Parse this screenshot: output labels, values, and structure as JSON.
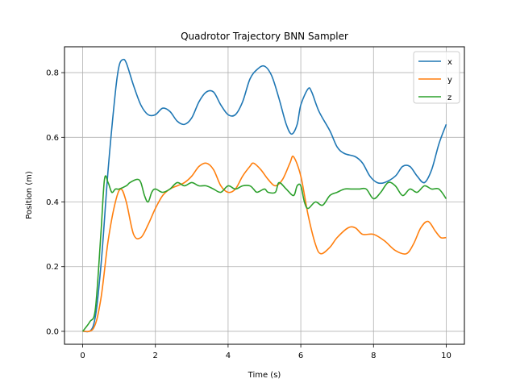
{
  "chart_data": {
    "type": "line",
    "title": "Quadrotor Trajectory BNN Sampler",
    "xlabel": "Time (s)",
    "ylabel": "Position (m)",
    "xlim": [
      -0.5,
      10.5
    ],
    "ylim": [
      -0.04,
      0.88
    ],
    "xticks": [
      0,
      2,
      4,
      6,
      8,
      10
    ],
    "yticks": [
      0.0,
      0.2,
      0.4,
      0.6,
      0.8
    ],
    "xtick_labels": [
      "0",
      "2",
      "4",
      "6",
      "8",
      "10"
    ],
    "ytick_labels": [
      "0.0",
      "0.2",
      "0.4",
      "0.6",
      "0.8"
    ],
    "grid": true,
    "legend_position": "top-right",
    "series": [
      {
        "name": "x",
        "color": "#1f77b4",
        "points": [
          [
            0,
            0
          ],
          [
            0.3,
            0.02
          ],
          [
            0.5,
            0.2
          ],
          [
            0.7,
            0.5
          ],
          [
            0.9,
            0.74
          ],
          [
            1.0,
            0.82
          ],
          [
            1.1,
            0.84
          ],
          [
            1.2,
            0.83
          ],
          [
            1.4,
            0.76
          ],
          [
            1.6,
            0.7
          ],
          [
            1.8,
            0.67
          ],
          [
            2.0,
            0.67
          ],
          [
            2.2,
            0.69
          ],
          [
            2.4,
            0.68
          ],
          [
            2.6,
            0.65
          ],
          [
            2.8,
            0.64
          ],
          [
            3.0,
            0.66
          ],
          [
            3.2,
            0.71
          ],
          [
            3.4,
            0.74
          ],
          [
            3.6,
            0.74
          ],
          [
            3.8,
            0.7
          ],
          [
            4.0,
            0.67
          ],
          [
            4.2,
            0.67
          ],
          [
            4.4,
            0.71
          ],
          [
            4.6,
            0.78
          ],
          [
            4.8,
            0.81
          ],
          [
            5.0,
            0.82
          ],
          [
            5.2,
            0.79
          ],
          [
            5.4,
            0.72
          ],
          [
            5.6,
            0.64
          ],
          [
            5.75,
            0.61
          ],
          [
            5.9,
            0.64
          ],
          [
            6.0,
            0.7
          ],
          [
            6.2,
            0.75
          ],
          [
            6.3,
            0.74
          ],
          [
            6.5,
            0.68
          ],
          [
            6.8,
            0.62
          ],
          [
            7.0,
            0.57
          ],
          [
            7.2,
            0.55
          ],
          [
            7.5,
            0.54
          ],
          [
            7.7,
            0.52
          ],
          [
            7.9,
            0.48
          ],
          [
            8.1,
            0.46
          ],
          [
            8.3,
            0.46
          ],
          [
            8.6,
            0.48
          ],
          [
            8.8,
            0.51
          ],
          [
            9.0,
            0.51
          ],
          [
            9.2,
            0.48
          ],
          [
            9.4,
            0.46
          ],
          [
            9.6,
            0.5
          ],
          [
            9.8,
            0.58
          ],
          [
            10.0,
            0.64
          ]
        ]
      },
      {
        "name": "y",
        "color": "#ff7f0e",
        "points": [
          [
            0,
            0
          ],
          [
            0.3,
            0.01
          ],
          [
            0.5,
            0.1
          ],
          [
            0.7,
            0.28
          ],
          [
            0.9,
            0.4
          ],
          [
            1.05,
            0.44
          ],
          [
            1.2,
            0.4
          ],
          [
            1.4,
            0.3
          ],
          [
            1.6,
            0.29
          ],
          [
            1.8,
            0.33
          ],
          [
            2.0,
            0.38
          ],
          [
            2.2,
            0.42
          ],
          [
            2.4,
            0.44
          ],
          [
            2.6,
            0.45
          ],
          [
            2.8,
            0.46
          ],
          [
            3.0,
            0.48
          ],
          [
            3.2,
            0.51
          ],
          [
            3.4,
            0.52
          ],
          [
            3.6,
            0.5
          ],
          [
            3.8,
            0.45
          ],
          [
            4.0,
            0.43
          ],
          [
            4.2,
            0.44
          ],
          [
            4.4,
            0.48
          ],
          [
            4.6,
            0.51
          ],
          [
            4.7,
            0.52
          ],
          [
            4.9,
            0.5
          ],
          [
            5.1,
            0.47
          ],
          [
            5.3,
            0.45
          ],
          [
            5.5,
            0.47
          ],
          [
            5.7,
            0.52
          ],
          [
            5.8,
            0.54
          ],
          [
            6.0,
            0.48
          ],
          [
            6.2,
            0.36
          ],
          [
            6.4,
            0.27
          ],
          [
            6.55,
            0.24
          ],
          [
            6.8,
            0.26
          ],
          [
            7.0,
            0.29
          ],
          [
            7.3,
            0.32
          ],
          [
            7.5,
            0.32
          ],
          [
            7.7,
            0.3
          ],
          [
            8.0,
            0.3
          ],
          [
            8.3,
            0.28
          ],
          [
            8.6,
            0.25
          ],
          [
            8.9,
            0.24
          ],
          [
            9.1,
            0.27
          ],
          [
            9.3,
            0.32
          ],
          [
            9.5,
            0.34
          ],
          [
            9.7,
            0.31
          ],
          [
            9.85,
            0.29
          ],
          [
            10.0,
            0.29
          ]
        ]
      },
      {
        "name": "z",
        "color": "#2ca02c",
        "points": [
          [
            0,
            0
          ],
          [
            0.2,
            0.03
          ],
          [
            0.35,
            0.07
          ],
          [
            0.5,
            0.3
          ],
          [
            0.6,
            0.47
          ],
          [
            0.7,
            0.46
          ],
          [
            0.8,
            0.43
          ],
          [
            0.9,
            0.44
          ],
          [
            1.0,
            0.44
          ],
          [
            1.2,
            0.45
          ],
          [
            1.3,
            0.46
          ],
          [
            1.5,
            0.47
          ],
          [
            1.6,
            0.46
          ],
          [
            1.7,
            0.42
          ],
          [
            1.8,
            0.4
          ],
          [
            1.9,
            0.43
          ],
          [
            2.0,
            0.44
          ],
          [
            2.2,
            0.43
          ],
          [
            2.4,
            0.44
          ],
          [
            2.6,
            0.46
          ],
          [
            2.8,
            0.45
          ],
          [
            3.0,
            0.46
          ],
          [
            3.2,
            0.45
          ],
          [
            3.4,
            0.45
          ],
          [
            3.6,
            0.44
          ],
          [
            3.8,
            0.43
          ],
          [
            4.0,
            0.45
          ],
          [
            4.2,
            0.44
          ],
          [
            4.4,
            0.45
          ],
          [
            4.6,
            0.45
          ],
          [
            4.7,
            0.44
          ],
          [
            4.8,
            0.43
          ],
          [
            5.0,
            0.44
          ],
          [
            5.1,
            0.43
          ],
          [
            5.3,
            0.43
          ],
          [
            5.4,
            0.46
          ],
          [
            5.6,
            0.44
          ],
          [
            5.8,
            0.42
          ],
          [
            5.9,
            0.45
          ],
          [
            6.0,
            0.45
          ],
          [
            6.1,
            0.4
          ],
          [
            6.2,
            0.38
          ],
          [
            6.4,
            0.4
          ],
          [
            6.6,
            0.39
          ],
          [
            6.8,
            0.42
          ],
          [
            7.0,
            0.43
          ],
          [
            7.2,
            0.44
          ],
          [
            7.4,
            0.44
          ],
          [
            7.6,
            0.44
          ],
          [
            7.8,
            0.44
          ],
          [
            8.0,
            0.41
          ],
          [
            8.2,
            0.43
          ],
          [
            8.4,
            0.46
          ],
          [
            8.6,
            0.45
          ],
          [
            8.8,
            0.42
          ],
          [
            9.0,
            0.44
          ],
          [
            9.2,
            0.43
          ],
          [
            9.4,
            0.45
          ],
          [
            9.6,
            0.44
          ],
          [
            9.8,
            0.44
          ],
          [
            10.0,
            0.41
          ]
        ]
      }
    ]
  }
}
